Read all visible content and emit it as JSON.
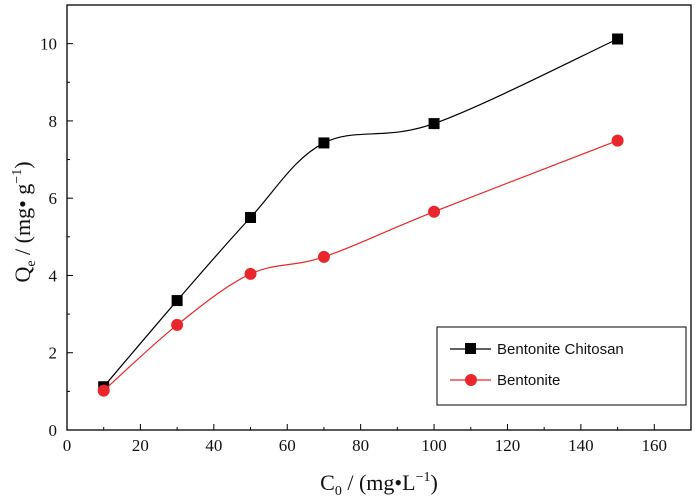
{
  "chart_data": {
    "type": "line",
    "title": "",
    "xlabel": {
      "main": "C",
      "sub": "0",
      "rest": " / (mg",
      "dot": "•",
      "unit": "L",
      "sup": "−1",
      "close": ")"
    },
    "ylabel": {
      "main": "Q",
      "sub": "e",
      "rest": " / (mg",
      "dot": "•",
      "unit": " g",
      "sup": "−1",
      "close": ")"
    },
    "xlim": [
      0,
      170
    ],
    "ylim": [
      0,
      11
    ],
    "xticks": [
      0,
      20,
      40,
      60,
      80,
      100,
      120,
      140,
      160
    ],
    "yticks": [
      0,
      2,
      4,
      6,
      8,
      10
    ],
    "legend_position": "bottom-right",
    "series": [
      {
        "name": "Bentonite Chitosan",
        "color": "#000000",
        "marker": "square",
        "x": [
          10,
          30,
          50,
          70,
          100,
          150
        ],
        "y": [
          1.12,
          3.35,
          5.5,
          7.43,
          7.93,
          10.12
        ]
      },
      {
        "name": "Bentonite",
        "color": "#e8262b",
        "marker": "circle",
        "x": [
          10,
          30,
          50,
          70,
          100,
          150
        ],
        "y": [
          1.02,
          2.72,
          4.04,
          4.48,
          5.65,
          7.49
        ]
      }
    ]
  }
}
